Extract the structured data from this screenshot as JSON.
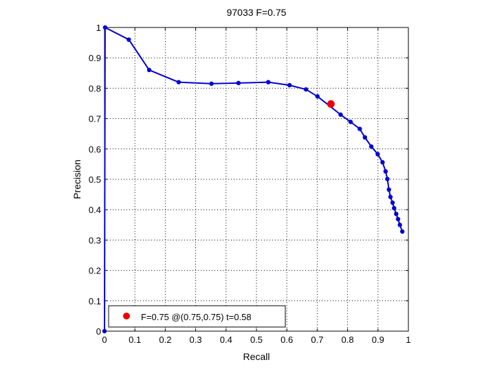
{
  "chart_data": {
    "type": "line",
    "title": "97033 F=0.75",
    "xlabel": "Recall",
    "ylabel": "Precision",
    "xlim": [
      0,
      1
    ],
    "ylim": [
      0,
      1
    ],
    "x_ticks": [
      "0",
      "0.1",
      "0.2",
      "0.3",
      "0.4",
      "0.5",
      "0.6",
      "0.7",
      "0.8",
      "0.9",
      "1"
    ],
    "y_ticks": [
      "0",
      "0.1",
      "0.2",
      "0.3",
      "0.4",
      "0.5",
      "0.6",
      "0.7",
      "0.8",
      "0.9",
      "1"
    ],
    "grid": true,
    "legend_position": "bottom-left",
    "colors": {
      "series": "#0000d0",
      "marker": "#ee0000"
    },
    "series": [
      {
        "x": [
          0,
          0.002,
          0.08,
          0.147,
          0.244,
          0.352,
          0.441,
          0.539,
          0.609,
          0.663,
          0.701,
          0.777,
          0.81,
          0.84,
          0.857,
          0.878,
          0.899,
          0.915,
          0.925,
          0.931,
          0.936,
          0.941,
          0.948,
          0.953,
          0.96,
          0.966,
          0.972,
          0.98
        ],
        "y": [
          0,
          1,
          0.96,
          0.86,
          0.82,
          0.815,
          0.817,
          0.82,
          0.81,
          0.796,
          0.773,
          0.713,
          0.689,
          0.666,
          0.638,
          0.608,
          0.583,
          0.556,
          0.526,
          0.501,
          0.466,
          0.442,
          0.423,
          0.405,
          0.386,
          0.369,
          0.35,
          0.328
        ]
      }
    ],
    "highlight": {
      "x": 0.745,
      "y": 0.748
    },
    "legend": "F=0.75 @(0.75,0.75) t=0.58"
  }
}
